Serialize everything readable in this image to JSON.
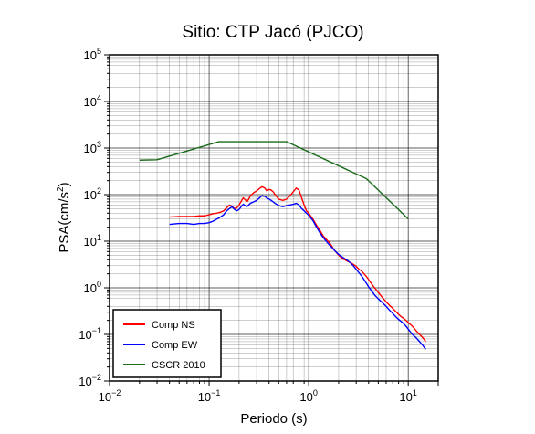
{
  "chart_data": {
    "type": "line",
    "title": "Sitio: CTP Jacó (PJCO)",
    "xlabel": "Periodo (s)",
    "ylabel_base": "PSA(cm/s",
    "ylabel_sup": "2",
    "ylabel_close": ")",
    "xscale": "log",
    "yscale": "log",
    "xlim": [
      0.01,
      20
    ],
    "ylim": [
      0.01,
      100000
    ],
    "grid": true,
    "legend_position": "bottom-left",
    "x_ticks": [
      {
        "base": "10",
        "exp": "−2",
        "value": 0.01
      },
      {
        "base": "10",
        "exp": "−1",
        "value": 0.1
      },
      {
        "base": "10",
        "exp": "0",
        "value": 1
      },
      {
        "base": "10",
        "exp": "1",
        "value": 10
      }
    ],
    "y_ticks": [
      {
        "base": "10",
        "exp": "−2",
        "value": 0.01
      },
      {
        "base": "10",
        "exp": "−1",
        "value": 0.1
      },
      {
        "base": "10",
        "exp": "0",
        "value": 1
      },
      {
        "base": "10",
        "exp": "1",
        "value": 10
      },
      {
        "base": "10",
        "exp": "2",
        "value": 100
      },
      {
        "base": "10",
        "exp": "3",
        "value": 1000
      },
      {
        "base": "10",
        "exp": "4",
        "value": 10000
      },
      {
        "base": "10",
        "exp": "5",
        "value": 100000
      }
    ],
    "series": [
      {
        "name": "Comp NS",
        "color": "#ff0000",
        "points": [
          [
            0.04,
            33
          ],
          [
            0.05,
            34
          ],
          [
            0.06,
            34
          ],
          [
            0.07,
            34
          ],
          [
            0.08,
            35
          ],
          [
            0.09,
            35
          ],
          [
            0.1,
            37
          ],
          [
            0.11,
            39
          ],
          [
            0.12,
            40
          ],
          [
            0.13,
            42
          ],
          [
            0.14,
            45
          ],
          [
            0.15,
            52
          ],
          [
            0.16,
            60
          ],
          [
            0.17,
            56
          ],
          [
            0.18,
            50
          ],
          [
            0.19,
            52
          ],
          [
            0.2,
            60
          ],
          [
            0.21,
            72
          ],
          [
            0.22,
            85
          ],
          [
            0.23,
            78
          ],
          [
            0.24,
            70
          ],
          [
            0.25,
            80
          ],
          [
            0.26,
            95
          ],
          [
            0.28,
            110
          ],
          [
            0.3,
            120
          ],
          [
            0.32,
            135
          ],
          [
            0.34,
            148
          ],
          [
            0.36,
            140
          ],
          [
            0.38,
            120
          ],
          [
            0.4,
            130
          ],
          [
            0.42,
            125
          ],
          [
            0.44,
            115
          ],
          [
            0.46,
            100
          ],
          [
            0.5,
            80
          ],
          [
            0.55,
            75
          ],
          [
            0.6,
            80
          ],
          [
            0.65,
            95
          ],
          [
            0.7,
            115
          ],
          [
            0.75,
            138
          ],
          [
            0.8,
            125
          ],
          [
            0.85,
            85
          ],
          [
            0.9,
            60
          ],
          [
            0.95,
            45
          ],
          [
            1.0,
            40
          ],
          [
            1.1,
            30
          ],
          [
            1.2,
            22
          ],
          [
            1.3,
            17
          ],
          [
            1.4,
            13
          ],
          [
            1.5,
            11
          ],
          [
            1.6,
            9.5
          ],
          [
            1.7,
            8
          ],
          [
            1.8,
            6.5
          ],
          [
            2.0,
            5
          ],
          [
            2.2,
            4.2
          ],
          [
            2.4,
            3.8
          ],
          [
            2.6,
            3.5
          ],
          [
            2.8,
            3.2
          ],
          [
            3.0,
            2.9
          ],
          [
            3.2,
            2.5
          ],
          [
            3.4,
            2.3
          ],
          [
            3.6,
            2.0
          ],
          [
            3.8,
            1.75
          ],
          [
            4.0,
            1.5
          ],
          [
            4.3,
            1.2
          ],
          [
            4.6,
            1.0
          ],
          [
            5.0,
            0.8
          ],
          [
            5.5,
            0.62
          ],
          [
            6.0,
            0.5
          ],
          [
            6.5,
            0.42
          ],
          [
            7.0,
            0.36
          ],
          [
            7.5,
            0.31
          ],
          [
            8.0,
            0.27
          ],
          [
            8.5,
            0.24
          ],
          [
            9.0,
            0.22
          ],
          [
            9.5,
            0.2
          ],
          [
            10,
            0.18
          ],
          [
            11,
            0.15
          ],
          [
            12,
            0.12
          ],
          [
            13,
            0.1
          ],
          [
            14,
            0.085
          ],
          [
            15,
            0.07
          ]
        ]
      },
      {
        "name": "Comp EW",
        "color": "#0000ff",
        "points": [
          [
            0.04,
            23
          ],
          [
            0.05,
            24
          ],
          [
            0.06,
            24
          ],
          [
            0.07,
            23
          ],
          [
            0.08,
            24
          ],
          [
            0.09,
            24
          ],
          [
            0.1,
            25
          ],
          [
            0.11,
            27
          ],
          [
            0.12,
            30
          ],
          [
            0.13,
            33
          ],
          [
            0.14,
            37
          ],
          [
            0.15,
            45
          ],
          [
            0.16,
            50
          ],
          [
            0.17,
            55
          ],
          [
            0.18,
            48
          ],
          [
            0.19,
            45
          ],
          [
            0.2,
            48
          ],
          [
            0.21,
            55
          ],
          [
            0.22,
            62
          ],
          [
            0.23,
            58
          ],
          [
            0.24,
            55
          ],
          [
            0.25,
            60
          ],
          [
            0.26,
            65
          ],
          [
            0.28,
            70
          ],
          [
            0.3,
            75
          ],
          [
            0.32,
            85
          ],
          [
            0.34,
            95
          ],
          [
            0.36,
            92
          ],
          [
            0.38,
            85
          ],
          [
            0.4,
            80
          ],
          [
            0.42,
            75
          ],
          [
            0.44,
            70
          ],
          [
            0.46,
            65
          ],
          [
            0.5,
            58
          ],
          [
            0.55,
            55
          ],
          [
            0.6,
            58
          ],
          [
            0.65,
            60
          ],
          [
            0.7,
            62
          ],
          [
            0.75,
            65
          ],
          [
            0.8,
            60
          ],
          [
            0.85,
            50
          ],
          [
            0.9,
            45
          ],
          [
            0.95,
            40
          ],
          [
            1.0,
            36
          ],
          [
            1.1,
            28
          ],
          [
            1.2,
            20
          ],
          [
            1.3,
            15
          ],
          [
            1.4,
            12
          ],
          [
            1.5,
            10
          ],
          [
            1.6,
            8.5
          ],
          [
            1.7,
            7.5
          ],
          [
            1.8,
            6.5
          ],
          [
            2.0,
            5.2
          ],
          [
            2.2,
            4.5
          ],
          [
            2.4,
            4.0
          ],
          [
            2.6,
            3.5
          ],
          [
            2.8,
            3.0
          ],
          [
            3.0,
            2.5
          ],
          [
            3.2,
            2.1
          ],
          [
            3.4,
            1.8
          ],
          [
            3.6,
            1.5
          ],
          [
            3.8,
            1.25
          ],
          [
            4.0,
            1.05
          ],
          [
            4.3,
            0.85
          ],
          [
            4.6,
            0.7
          ],
          [
            5.0,
            0.58
          ],
          [
            5.5,
            0.48
          ],
          [
            6.0,
            0.4
          ],
          [
            6.5,
            0.33
          ],
          [
            7.0,
            0.28
          ],
          [
            7.5,
            0.24
          ],
          [
            8.0,
            0.21
          ],
          [
            8.5,
            0.19
          ],
          [
            9.0,
            0.17
          ],
          [
            9.5,
            0.15
          ],
          [
            10,
            0.13
          ],
          [
            11,
            0.1
          ],
          [
            12,
            0.085
          ],
          [
            13,
            0.07
          ],
          [
            14,
            0.058
          ],
          [
            15,
            0.048
          ]
        ]
      },
      {
        "name": "CSCR 2010",
        "color": "#1a6b1a",
        "points": [
          [
            0.02,
            550
          ],
          [
            0.03,
            560
          ],
          [
            0.125,
            1370
          ],
          [
            0.6,
            1370
          ],
          [
            3.8,
            220
          ],
          [
            10,
            30
          ]
        ]
      }
    ]
  }
}
